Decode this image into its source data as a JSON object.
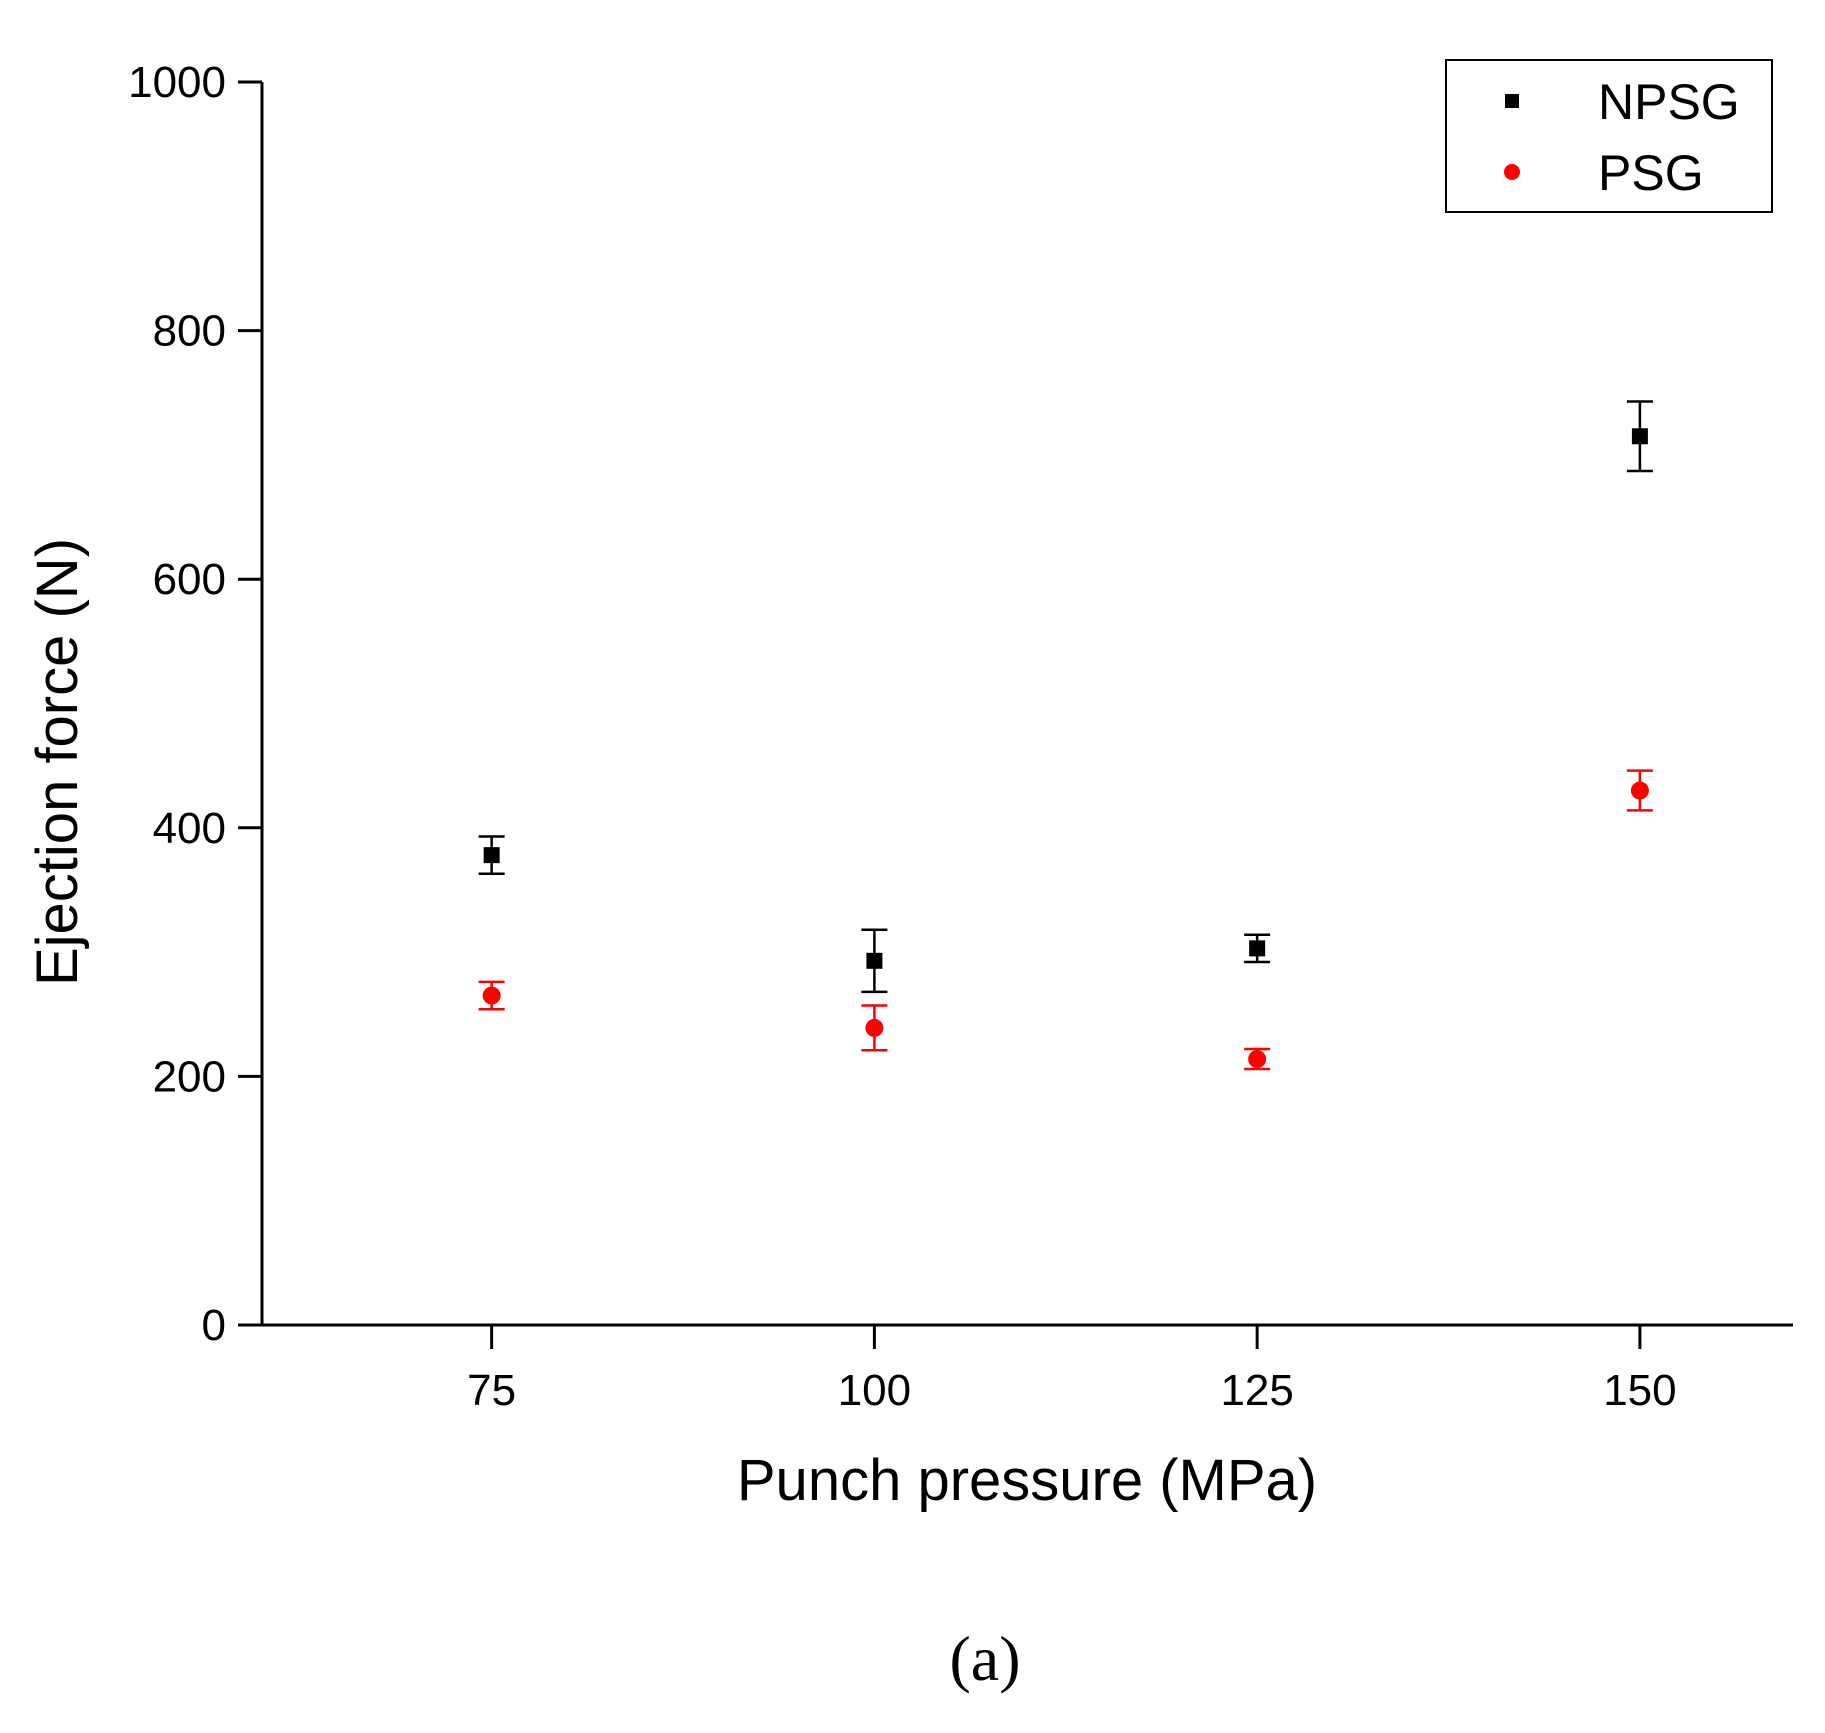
{
  "chart_data": {
    "type": "scatter",
    "xlabel": "Punch pressure (MPa)",
    "ylabel": "Ejection force (N)",
    "xlim": [
      60,
      160
    ],
    "ylim": [
      0,
      1000
    ],
    "x_ticks": [
      "75",
      "100",
      "125",
      "150"
    ],
    "y_ticks": [
      "0",
      "200",
      "400",
      "600",
      "800",
      "1000"
    ],
    "legend_position": "top-right",
    "grid": false,
    "series": [
      {
        "name": "NPSG",
        "marker": "square",
        "color": "#000000",
        "points": [
          {
            "x": 75,
            "y": 378,
            "err": 15
          },
          {
            "x": 100,
            "y": 293,
            "err": 25
          },
          {
            "x": 125,
            "y": 303,
            "err": 11
          },
          {
            "x": 150,
            "y": 715,
            "err": 28
          }
        ]
      },
      {
        "name": "PSG",
        "marker": "circle",
        "color": "#ff0000",
        "points": [
          {
            "x": 75,
            "y": 265,
            "err": 11
          },
          {
            "x": 100,
            "y": 239,
            "err": 18
          },
          {
            "x": 125,
            "y": 214,
            "err": 8
          },
          {
            "x": 150,
            "y": 430,
            "err": 16
          }
        ]
      }
    ],
    "panel_label": "(a)"
  }
}
